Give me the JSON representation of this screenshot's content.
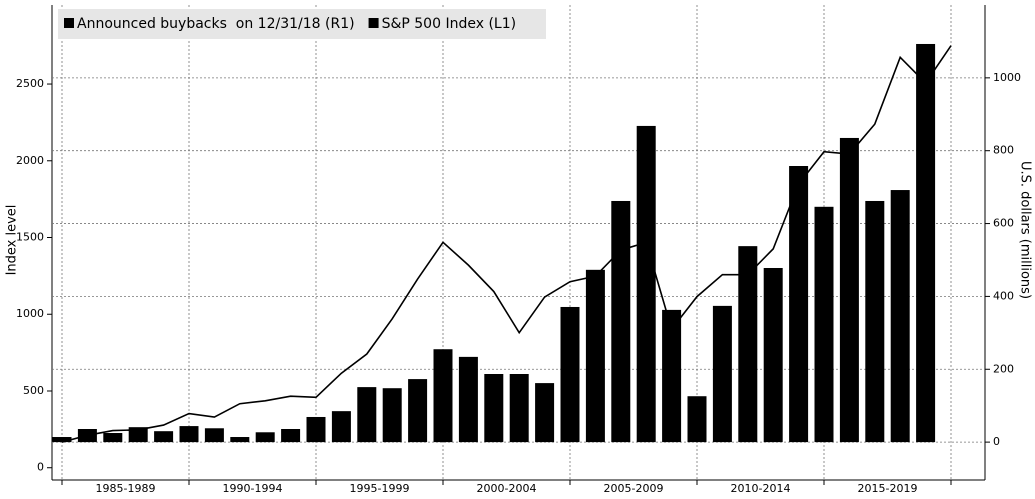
{
  "chart_data": {
    "type": "bar-line",
    "categories": [
      null,
      null,
      null,
      null,
      null,
      null,
      null,
      null,
      null,
      null,
      null,
      null,
      null,
      null,
      null,
      null,
      null,
      null,
      null,
      null,
      null,
      null,
      null,
      null,
      null,
      null,
      null,
      null,
      null,
      null,
      null,
      null,
      null,
      null,
      null,
      null
    ],
    "period_labels": [
      "1985-1989",
      "1990-1994",
      "1995-1999",
      "2000-2004",
      "2005-2009",
      "2010-2014",
      "2015-2019"
    ],
    "series": [
      {
        "name": "Announced buybacks  on 12/31/18 (R1)",
        "color": "#000000",
        "kind": "bar",
        "axis": "y2",
        "values": [
          14,
          36,
          25,
          41,
          30,
          44,
          38,
          14,
          27,
          36,
          69,
          85,
          151,
          148,
          173,
          255,
          234,
          187,
          187,
          162,
          371,
          473,
          662,
          868,
          363,
          126,
          374,
          538,
          478,
          758,
          646,
          835,
          662,
          692,
          1093,
          null
        ]
      },
      {
        "name": "S&P 500 Index (L1)",
        "color": "#000000",
        "kind": "line",
        "values": [
          167,
          211,
          242,
          247,
          278,
          353,
          330,
          417,
          436,
          466,
          459,
          616,
          741,
          970,
          1229,
          1469,
          1320,
          1148,
          880,
          1112,
          1212,
          1248,
          1418,
          1468,
          903,
          1115,
          1258,
          1258,
          1426,
          1848,
          2059,
          2044,
          2239,
          2674,
          2507,
          2750
        ]
      }
    ],
    "ylabel": "Index level",
    "y2label": "U.S. dollars (millions)",
    "ylim": [
      -80,
      3015
    ],
    "yticks": [
      0,
      500,
      1000,
      1500,
      2000,
      2500
    ],
    "y2lim": [
      -104,
      1200
    ],
    "y2ticks": [
      0,
      200,
      400,
      600,
      800,
      1000
    ],
    "grid": true,
    "legend": "top-left"
  }
}
